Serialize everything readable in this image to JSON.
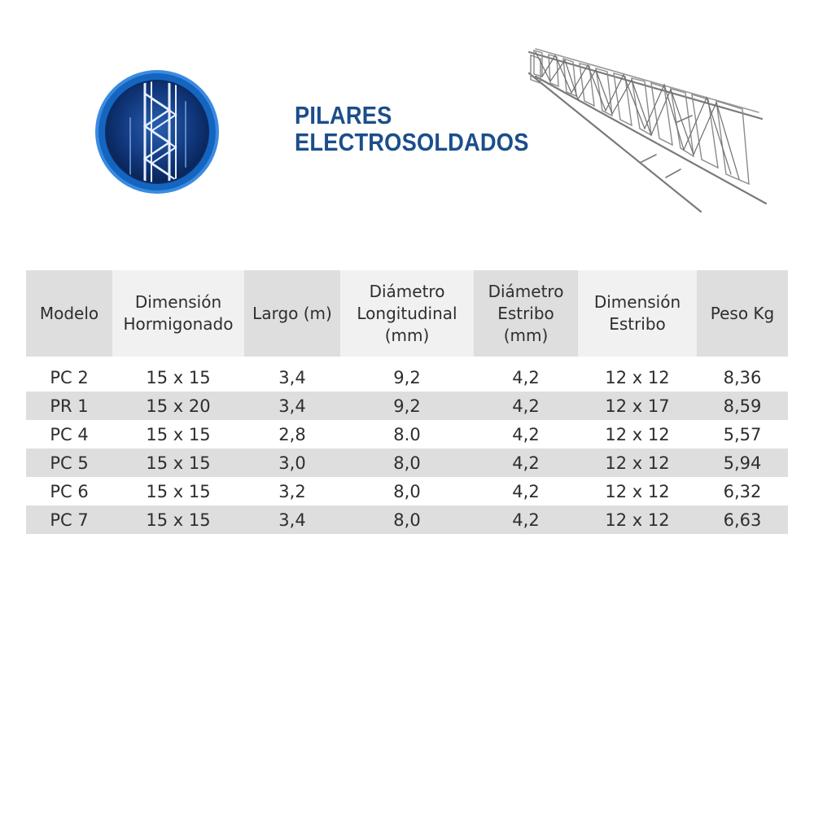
{
  "header": {
    "title_line1": "PILARES",
    "title_line2": "ELECTROSOLDADOS",
    "logo_icon": "rebar-column-badge-icon",
    "product_image": "rebar-cage-image"
  },
  "colors": {
    "title": "#1b4e8a",
    "badge_ring": "#1a6fc4",
    "badge_inner": "#0d2f66",
    "table_header_bg": "#dedede",
    "row_shade_bg": "#dedede"
  },
  "table": {
    "columns": [
      "Modelo",
      "Dimensión\nHormigonado",
      "Largo (m)",
      "Diámetro\nLongitudinal\n(mm)",
      "Diámetro\nEstribo\n(mm)",
      "Dimensión\nEstribo",
      "Peso Kg"
    ],
    "rows": [
      [
        "PC 2",
        "15 x 15",
        "3,4",
        "9,2",
        "4,2",
        "12 x 12",
        "8,36"
      ],
      [
        "PR 1",
        "15 x 20",
        "3,4",
        "9,2",
        "4,2",
        "12 x 17",
        "8,59"
      ],
      [
        "PC 4",
        "15 x 15",
        "2,8",
        "8.0",
        "4,2",
        "12 x 12",
        "5,57"
      ],
      [
        "PC 5",
        "15 x 15",
        "3,0",
        "8,0",
        "4,2",
        "12 x 12",
        "5,94"
      ],
      [
        "PC 6",
        "15 x 15",
        "3,2",
        "8,0",
        "4,2",
        "12 x 12",
        "6,32"
      ],
      [
        "PC 7",
        "15 x 15",
        "3,4",
        "8,0",
        "4,2",
        "12 x 12",
        "6,63"
      ]
    ]
  }
}
